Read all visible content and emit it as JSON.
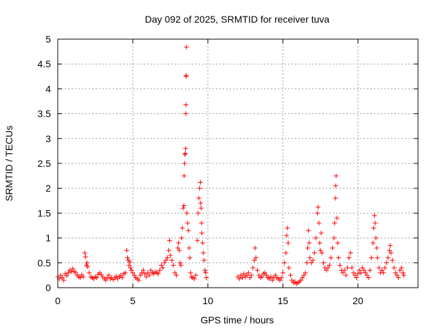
{
  "chart_data": {
    "type": "scatter",
    "title": "Day 092 of 2025, SRMTID for receiver tuva",
    "xlabel": "GPS time / hours",
    "ylabel": "SRMTID / TECUs",
    "xlim": [
      0,
      24
    ],
    "ylim": [
      0,
      5
    ],
    "xticks": [
      0,
      5,
      10,
      15,
      20
    ],
    "yticks": [
      0,
      0.5,
      1,
      1.5,
      2,
      2.5,
      3,
      3.5,
      4,
      4.5,
      5
    ],
    "xtick_labels": [
      "0",
      "5",
      "10",
      "15",
      "20"
    ],
    "ytick_labels": [
      "0",
      "0.5",
      "1",
      "1.5",
      "2",
      "2.5",
      "3",
      "3.5",
      "4",
      "4.5",
      "5"
    ],
    "grid": true,
    "marker": "+",
    "color": "#ff0000",
    "series": [
      {
        "points": [
          [
            0.0,
            0.22
          ],
          [
            0.1,
            0.18
          ],
          [
            0.2,
            0.25
          ],
          [
            0.3,
            0.2
          ],
          [
            0.4,
            0.15
          ],
          [
            0.5,
            0.28
          ],
          [
            0.6,
            0.24
          ],
          [
            0.7,
            0.3
          ],
          [
            0.8,
            0.35
          ],
          [
            0.9,
            0.32
          ],
          [
            1.0,
            0.38
          ],
          [
            1.1,
            0.33
          ],
          [
            1.2,
            0.3
          ],
          [
            1.3,
            0.25
          ],
          [
            1.4,
            0.22
          ],
          [
            1.5,
            0.2
          ],
          [
            1.6,
            0.26
          ],
          [
            1.7,
            0.22
          ],
          [
            1.8,
            0.7
          ],
          [
            1.85,
            0.62
          ],
          [
            1.9,
            0.45
          ],
          [
            1.95,
            0.5
          ],
          [
            2.0,
            0.42
          ],
          [
            2.1,
            0.3
          ],
          [
            2.2,
            0.22
          ],
          [
            2.3,
            0.2
          ],
          [
            2.4,
            0.18
          ],
          [
            2.5,
            0.22
          ],
          [
            2.6,
            0.2
          ],
          [
            2.7,
            0.27
          ],
          [
            2.8,
            0.3
          ],
          [
            2.9,
            0.26
          ],
          [
            3.0,
            0.22
          ],
          [
            3.1,
            0.18
          ],
          [
            3.2,
            0.15
          ],
          [
            3.3,
            0.2
          ],
          [
            3.4,
            0.25
          ],
          [
            3.5,
            0.18
          ],
          [
            3.6,
            0.2
          ],
          [
            3.7,
            0.16
          ],
          [
            3.8,
            0.2
          ],
          [
            3.9,
            0.23
          ],
          [
            4.0,
            0.18
          ],
          [
            4.1,
            0.22
          ],
          [
            4.2,
            0.25
          ],
          [
            4.3,
            0.2
          ],
          [
            4.4,
            0.28
          ],
          [
            4.5,
            0.3
          ],
          [
            4.6,
            0.75
          ],
          [
            4.65,
            0.6
          ],
          [
            4.7,
            0.55
          ],
          [
            4.75,
            0.45
          ],
          [
            4.8,
            0.52
          ],
          [
            4.85,
            0.4
          ],
          [
            4.9,
            0.35
          ],
          [
            5.0,
            0.3
          ],
          [
            5.1,
            0.25
          ],
          [
            5.2,
            0.2
          ],
          [
            5.3,
            0.18
          ],
          [
            5.4,
            0.15
          ],
          [
            5.5,
            0.25
          ],
          [
            5.6,
            0.3
          ],
          [
            5.7,
            0.35
          ],
          [
            5.8,
            0.28
          ],
          [
            5.9,
            0.22
          ],
          [
            6.0,
            0.3
          ],
          [
            6.1,
            0.25
          ],
          [
            6.2,
            0.35
          ],
          [
            6.3,
            0.3
          ],
          [
            6.4,
            0.28
          ],
          [
            6.5,
            0.32
          ],
          [
            6.6,
            0.3
          ],
          [
            6.7,
            0.28
          ],
          [
            6.8,
            0.35
          ],
          [
            6.9,
            0.45
          ],
          [
            7.0,
            0.4
          ],
          [
            7.1,
            0.5
          ],
          [
            7.2,
            0.55
          ],
          [
            7.3,
            0.6
          ],
          [
            7.4,
            0.75
          ],
          [
            7.45,
            0.95
          ],
          [
            7.5,
            0.65
          ],
          [
            7.6,
            0.55
          ],
          [
            7.7,
            0.45
          ],
          [
            7.8,
            0.3
          ],
          [
            7.9,
            0.25
          ],
          [
            8.0,
            0.8
          ],
          [
            8.05,
            0.9
          ],
          [
            8.1,
            0.75
          ],
          [
            8.15,
            0.5
          ],
          [
            8.2,
            0.45
          ],
          [
            8.25,
            1.0
          ],
          [
            8.3,
            1.2
          ],
          [
            8.35,
            1.6
          ],
          [
            8.4,
            1.65
          ],
          [
            8.42,
            2.25
          ],
          [
            8.45,
            2.5
          ],
          [
            8.47,
            2.68
          ],
          [
            8.5,
            2.7
          ],
          [
            8.52,
            2.8
          ],
          [
            8.53,
            3.5
          ],
          [
            8.54,
            3.68
          ],
          [
            8.55,
            4.25
          ],
          [
            8.56,
            4.27
          ],
          [
            8.57,
            4.84
          ],
          [
            8.6,
            1.5
          ],
          [
            8.65,
            1.3
          ],
          [
            8.7,
            1.15
          ],
          [
            8.75,
            0.8
          ],
          [
            8.8,
            0.6
          ],
          [
            8.85,
            0.3
          ],
          [
            8.9,
            0.22
          ],
          [
            9.0,
            0.2
          ],
          [
            9.1,
            0.18
          ],
          [
            9.2,
            0.25
          ],
          [
            9.3,
            0.95
          ],
          [
            9.35,
            1.5
          ],
          [
            9.4,
            1.8
          ],
          [
            9.45,
            2.0
          ],
          [
            9.5,
            2.12
          ],
          [
            9.52,
            1.7
          ],
          [
            9.55,
            1.6
          ],
          [
            9.58,
            1.3
          ],
          [
            9.6,
            1.1
          ],
          [
            9.65,
            0.9
          ],
          [
            9.7,
            0.7
          ],
          [
            9.75,
            0.55
          ],
          [
            9.8,
            0.35
          ],
          [
            9.85,
            0.3
          ],
          [
            9.9,
            0.2
          ],
          [
            12.0,
            0.22
          ],
          [
            12.1,
            0.18
          ],
          [
            12.2,
            0.25
          ],
          [
            12.3,
            0.2
          ],
          [
            12.4,
            0.28
          ],
          [
            12.5,
            0.22
          ],
          [
            12.6,
            0.25
          ],
          [
            12.7,
            0.3
          ],
          [
            12.8,
            0.2
          ],
          [
            12.9,
            0.25
          ],
          [
            13.0,
            0.4
          ],
          [
            13.1,
            0.55
          ],
          [
            13.15,
            0.8
          ],
          [
            13.2,
            0.6
          ],
          [
            13.3,
            0.35
          ],
          [
            13.4,
            0.25
          ],
          [
            13.5,
            0.2
          ],
          [
            13.6,
            0.22
          ],
          [
            13.7,
            0.28
          ],
          [
            13.8,
            0.3
          ],
          [
            13.9,
            0.25
          ],
          [
            14.0,
            0.2
          ],
          [
            14.1,
            0.18
          ],
          [
            14.2,
            0.22
          ],
          [
            14.3,
            0.15
          ],
          [
            14.4,
            0.2
          ],
          [
            14.5,
            0.25
          ],
          [
            14.6,
            0.2
          ],
          [
            14.7,
            0.18
          ],
          [
            14.8,
            0.15
          ],
          [
            14.9,
            0.2
          ],
          [
            15.0,
            0.3
          ],
          [
            15.1,
            0.5
          ],
          [
            15.2,
            0.7
          ],
          [
            15.25,
            1.05
          ],
          [
            15.3,
            1.2
          ],
          [
            15.35,
            0.9
          ],
          [
            15.4,
            0.4
          ],
          [
            15.5,
            0.25
          ],
          [
            15.6,
            0.15
          ],
          [
            15.7,
            0.1
          ],
          [
            15.8,
            0.12
          ],
          [
            15.9,
            0.08
          ],
          [
            16.0,
            0.1
          ],
          [
            16.1,
            0.12
          ],
          [
            16.2,
            0.15
          ],
          [
            16.3,
            0.2
          ],
          [
            16.4,
            0.25
          ],
          [
            16.5,
            0.3
          ],
          [
            16.6,
            0.5
          ],
          [
            16.65,
            0.8
          ],
          [
            16.7,
            1.15
          ],
          [
            16.75,
            0.9
          ],
          [
            16.8,
            0.6
          ],
          [
            16.9,
            0.5
          ],
          [
            17.0,
            0.55
          ],
          [
            17.1,
            0.7
          ],
          [
            17.2,
            1.0
          ],
          [
            17.3,
            1.5
          ],
          [
            17.35,
            1.62
          ],
          [
            17.4,
            1.3
          ],
          [
            17.45,
            0.9
          ],
          [
            17.5,
            0.75
          ],
          [
            17.55,
            1.1
          ],
          [
            17.6,
            0.7
          ],
          [
            17.7,
            0.5
          ],
          [
            17.8,
            0.4
          ],
          [
            17.9,
            0.35
          ],
          [
            18.0,
            0.4
          ],
          [
            18.1,
            0.45
          ],
          [
            18.2,
            0.6
          ],
          [
            18.3,
            0.8
          ],
          [
            18.4,
            1.0
          ],
          [
            18.45,
            1.3
          ],
          [
            18.5,
            1.8
          ],
          [
            18.52,
            2.05
          ],
          [
            18.55,
            2.25
          ],
          [
            18.6,
            1.4
          ],
          [
            18.65,
            0.9
          ],
          [
            18.7,
            0.6
          ],
          [
            18.8,
            0.45
          ],
          [
            18.9,
            0.35
          ],
          [
            19.0,
            0.3
          ],
          [
            19.1,
            0.35
          ],
          [
            19.2,
            0.25
          ],
          [
            19.3,
            0.4
          ],
          [
            19.4,
            0.6
          ],
          [
            19.5,
            0.7
          ],
          [
            19.6,
            0.4
          ],
          [
            19.7,
            0.3
          ],
          [
            19.8,
            0.25
          ],
          [
            19.9,
            0.2
          ],
          [
            20.0,
            0.28
          ],
          [
            20.1,
            0.35
          ],
          [
            20.2,
            0.3
          ],
          [
            20.3,
            0.4
          ],
          [
            20.4,
            0.35
          ],
          [
            20.5,
            0.3
          ],
          [
            20.6,
            0.25
          ],
          [
            20.7,
            0.2
          ],
          [
            20.8,
            0.35
          ],
          [
            20.9,
            0.6
          ],
          [
            21.0,
            0.9
          ],
          [
            21.05,
            1.2
          ],
          [
            21.1,
            1.45
          ],
          [
            21.15,
            1.3
          ],
          [
            21.2,
            1.0
          ],
          [
            21.25,
            0.8
          ],
          [
            21.3,
            0.6
          ],
          [
            21.4,
            0.4
          ],
          [
            21.5,
            0.3
          ],
          [
            21.6,
            0.35
          ],
          [
            21.7,
            0.3
          ],
          [
            21.8,
            0.4
          ],
          [
            21.9,
            0.5
          ],
          [
            22.0,
            0.6
          ],
          [
            22.1,
            0.75
          ],
          [
            22.15,
            0.85
          ],
          [
            22.2,
            0.7
          ],
          [
            22.3,
            0.55
          ],
          [
            22.4,
            0.4
          ],
          [
            22.5,
            0.3
          ],
          [
            22.6,
            0.25
          ],
          [
            22.7,
            0.2
          ],
          [
            22.8,
            0.35
          ],
          [
            22.9,
            0.4
          ],
          [
            23.0,
            0.3
          ],
          [
            23.05,
            0.25
          ]
        ]
      }
    ]
  }
}
